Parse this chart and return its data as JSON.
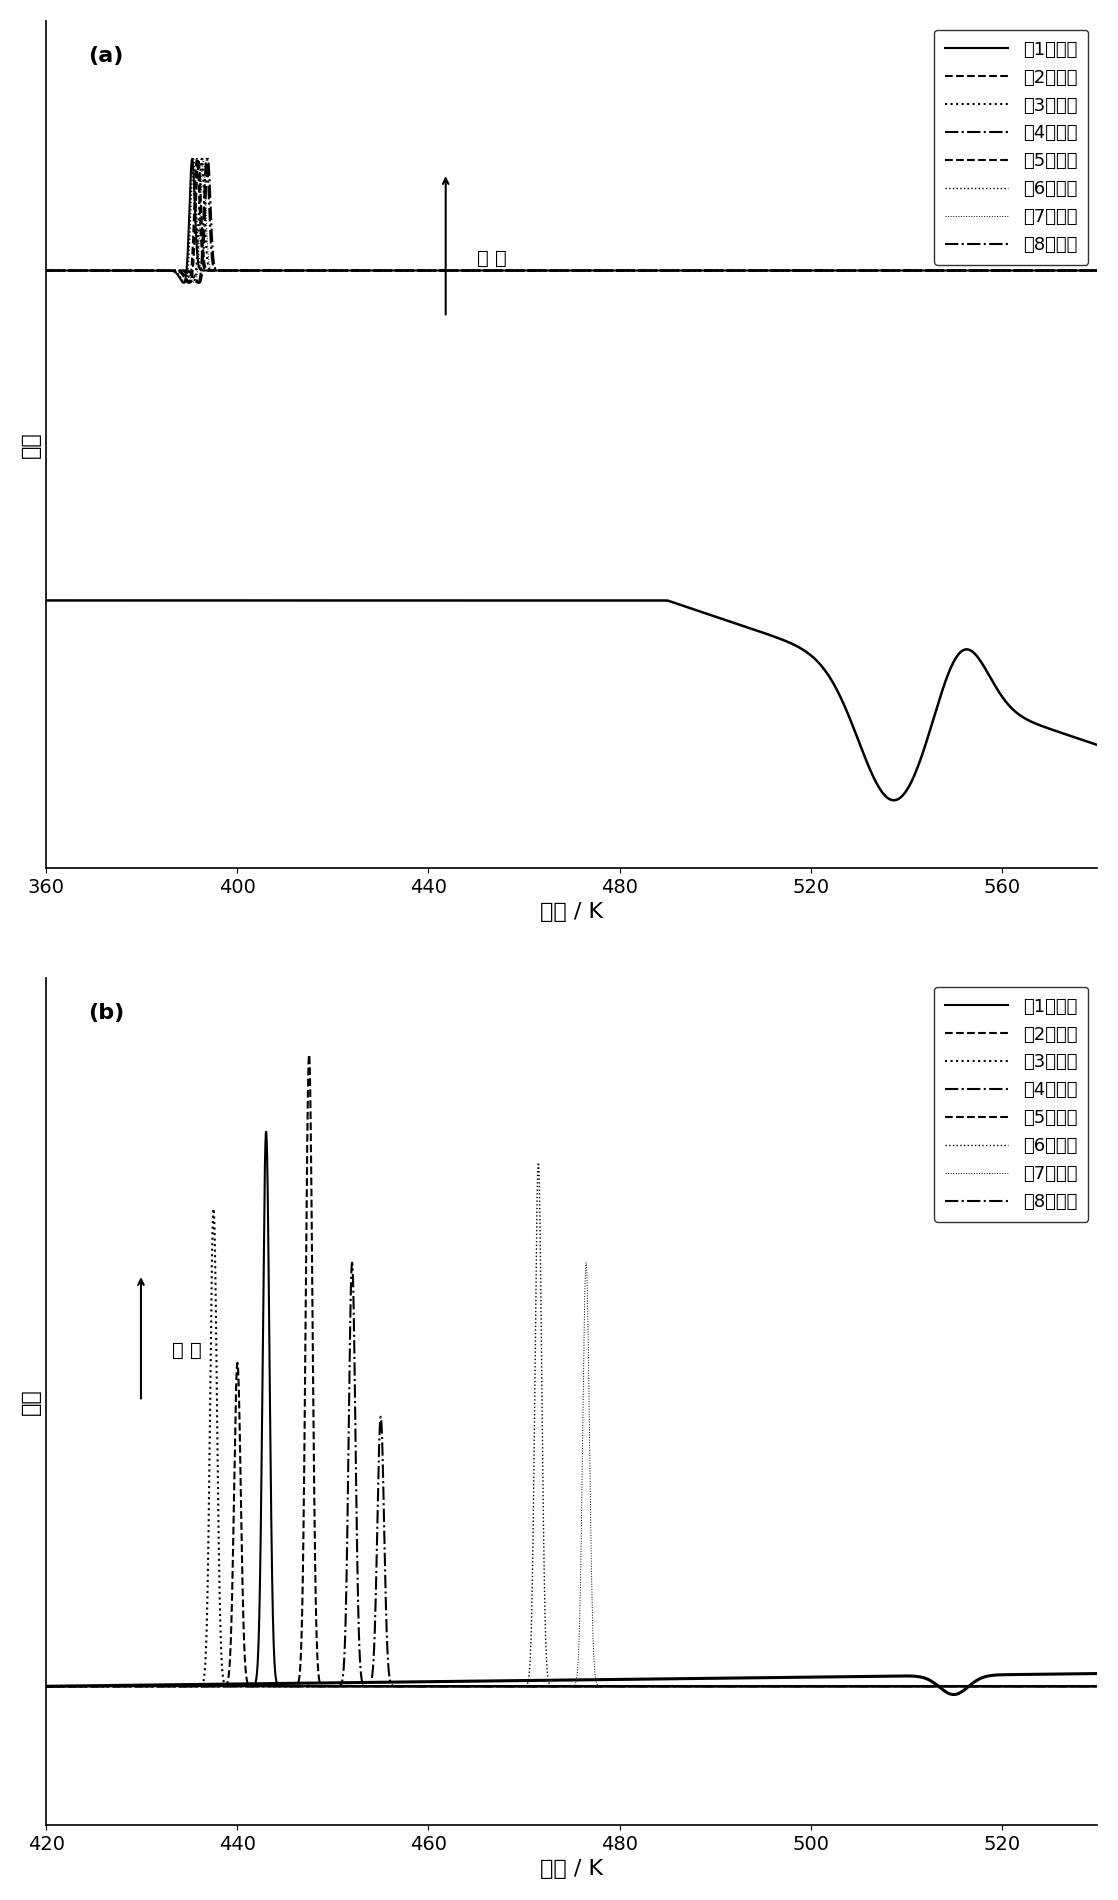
{
  "panel_a": {
    "xlim": [
      360,
      580
    ],
    "xticks": [
      360,
      400,
      440,
      480,
      520,
      560
    ],
    "xlabel": "温度 / K",
    "ylabel": "热流",
    "label": "(a)",
    "exotherm_label": "放 热"
  },
  "panel_b": {
    "xlim": [
      420,
      530
    ],
    "xticks": [
      420,
      440,
      460,
      480,
      500,
      520
    ],
    "xlabel": "温度 / K",
    "ylabel": "热流",
    "label": "(b)",
    "exotherm_label": "放 热"
  },
  "legend_labels": [
    "第1次循环",
    "第2次循环",
    "第3次循环",
    "第4次循环",
    "第5次循环",
    "第6次循环",
    "第7次循环",
    "第8次循环"
  ],
  "linestyles_a": [
    "-",
    "--",
    ":",
    "-.",
    "--",
    ":",
    ":",
    "-."
  ],
  "linestyles_b": [
    "-",
    "--",
    ":",
    "-.",
    "--",
    ":",
    ":",
    "-."
  ],
  "linewidths": [
    1.5,
    1.5,
    1.5,
    1.5,
    1.5,
    1.0,
    0.7,
    1.5
  ],
  "peak_positions_a": [
    390.5,
    391.5,
    392.5,
    393.5,
    391.8,
    390.8,
    392.8,
    393.8
  ],
  "peak_heights_a": [
    0.13,
    0.13,
    0.13,
    0.13,
    0.13,
    0.13,
    0.13,
    0.13
  ],
  "baseline_a_upper": 0.72,
  "baseline_a_lower": 0.35,
  "peak_positions_b": [
    443.0,
    447.5,
    437.5,
    452.0,
    440.0,
    471.5,
    476.5,
    455.0
  ],
  "peak_heights_b": [
    0.72,
    0.82,
    0.62,
    0.55,
    0.42,
    0.68,
    0.55,
    0.35
  ],
  "baseline_b": 0.18
}
